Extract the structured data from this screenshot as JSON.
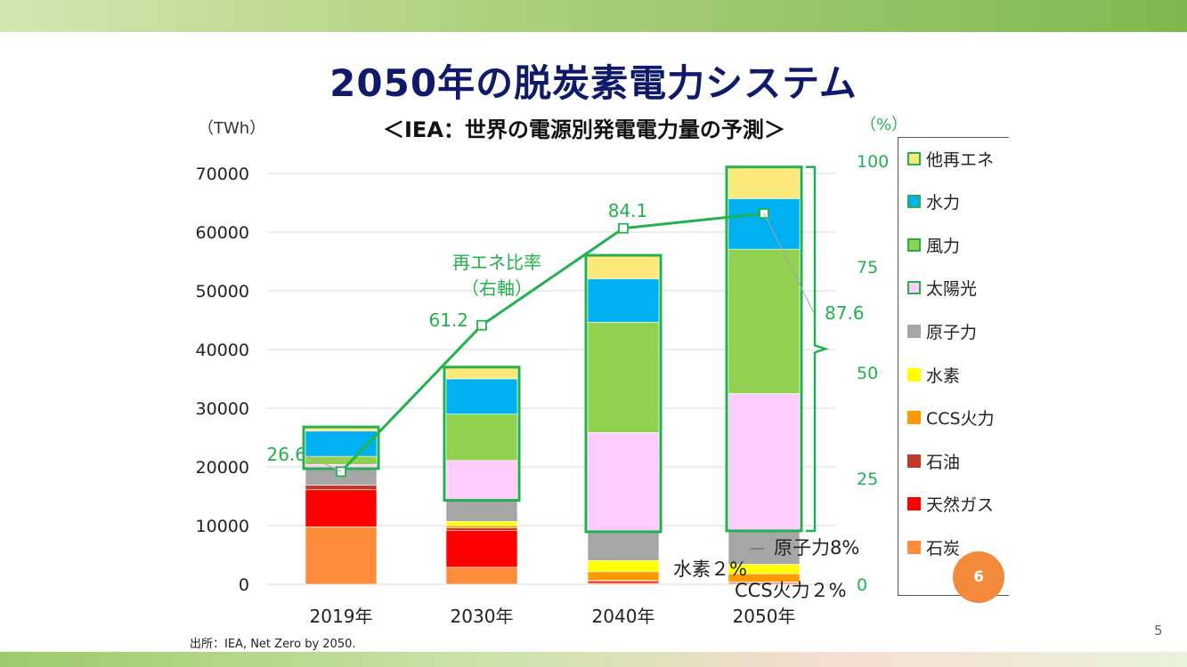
{
  "slide": {
    "title": "2050年の脱炭素電力システム",
    "subtitle": "＜IEA：世界の電源別発電電力量の予測＞",
    "unit_left": "（TWh）",
    "unit_right": "（%）",
    "source": "出所：IEA, Net Zero by 2050.",
    "page_number": "5",
    "badge": "6"
  },
  "annotations": {
    "re_ratio_label_line1": "再エネ比率",
    "re_ratio_label_line2": "（右軸）",
    "nuclear_note": "原子力8%",
    "hydrogen_note": "水素２%",
    "ccs_note": "CCS火力２%"
  },
  "colors": {
    "other_re": "#fde97a",
    "hydro": "#00b0f0",
    "wind": "#92d050",
    "solar": "#ffccff",
    "nuclear": "#a6a6a6",
    "hydrogen": "#ffff00",
    "ccs": "#ff9900",
    "oil": "#c0392b",
    "gas": "#ff0000",
    "coal": "#ff8c3a",
    "re_outline": "#22b14c",
    "title": "#0f1a6b"
  },
  "chart_data": {
    "type": "bar",
    "stacked": true,
    "categories": [
      "2019年",
      "2030年",
      "2040年",
      "2050年"
    ],
    "ylim": [
      0,
      70000
    ],
    "yticks": [
      0,
      10000,
      20000,
      30000,
      40000,
      50000,
      60000,
      70000
    ],
    "y2lim": [
      0,
      100
    ],
    "y2ticks": [
      0,
      25,
      50,
      75,
      100
    ],
    "series": [
      {
        "name": "石炭",
        "color_key": "coal",
        "values": [
          9800,
          2900,
          200,
          200
        ]
      },
      {
        "name": "天然ガス",
        "color_key": "gas",
        "values": [
          6300,
          6300,
          300,
          150
        ]
      },
      {
        "name": "石油",
        "color_key": "oil",
        "values": [
          800,
          400,
          150,
          50
        ]
      },
      {
        "name": "CCS火力",
        "color_key": "ccs",
        "values": [
          0,
          400,
          1500,
          1400
        ]
      },
      {
        "name": "水素",
        "color_key": "hydrogen",
        "values": [
          0,
          700,
          1900,
          1600
        ]
      },
      {
        "name": "原子力",
        "color_key": "nuclear",
        "values": [
          2800,
          3600,
          4900,
          5700
        ]
      },
      {
        "name": "太陽光",
        "color_key": "solar",
        "values": [
          700,
          6800,
          16900,
          23400
        ]
      },
      {
        "name": "風力",
        "color_key": "wind",
        "values": [
          1400,
          7900,
          18800,
          24600
        ]
      },
      {
        "name": "水力",
        "color_key": "hydro",
        "values": [
          4300,
          6000,
          7400,
          8600
        ]
      },
      {
        "name": "他再エネ",
        "color_key": "other_re",
        "values": [
          700,
          2000,
          4000,
          5400
        ]
      }
    ],
    "line": {
      "name": "再エネ比率",
      "axis": "right",
      "values": [
        26.6,
        61.2,
        84.1,
        87.6
      ],
      "labels": [
        "26.6",
        "61.2",
        "84.1",
        "87.6"
      ]
    },
    "legend": [
      "他再エネ",
      "水力",
      "風力",
      "太陽光",
      "原子力",
      "水素",
      "CCS火力",
      "石油",
      "天然ガス",
      "石炭"
    ]
  }
}
